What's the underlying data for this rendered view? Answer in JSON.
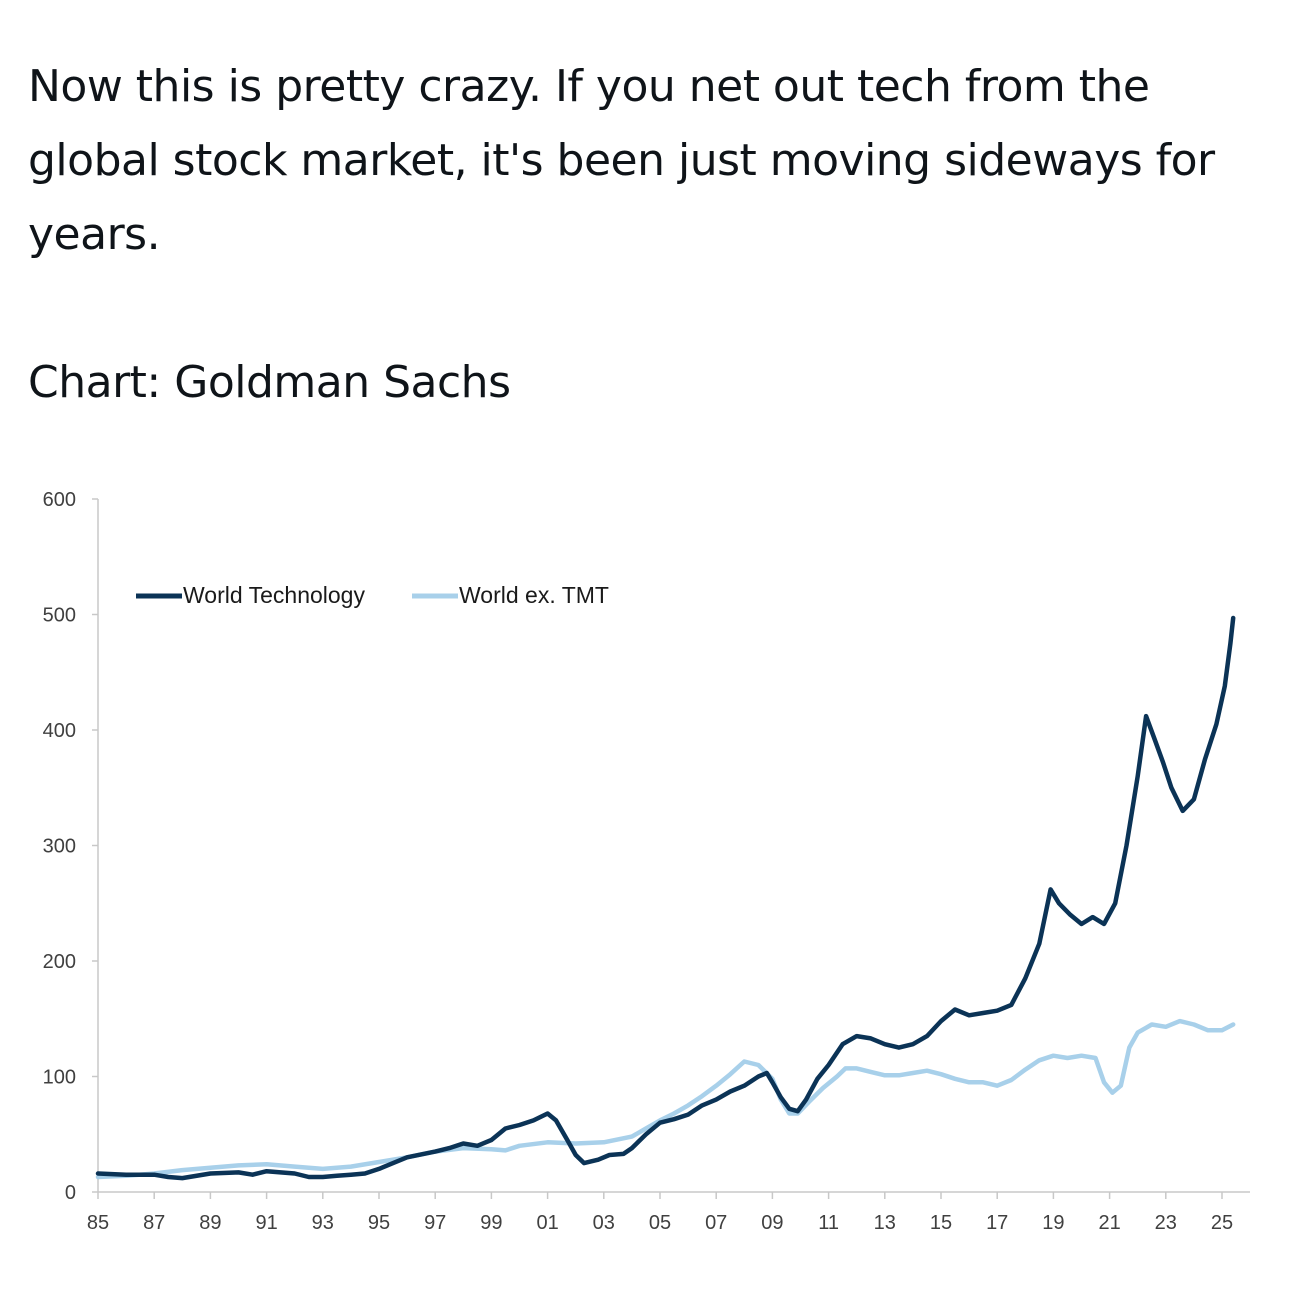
{
  "post": {
    "text": "Now this is pretty crazy. If you net out tech from the global stock market, it's been just moving sideways for years.",
    "source": "Chart: Goldman Sachs"
  },
  "colors": {
    "world_technology": "#0b3356",
    "world_ex_tmt": "#a8d0ea",
    "axis": "#c8c8c8",
    "tick_text": "#404040"
  },
  "chart_data": {
    "type": "line",
    "title": "",
    "xlabel": "",
    "ylabel": "",
    "xlim": [
      1985,
      2025.6
    ],
    "ylim": [
      0,
      600
    ],
    "x_tick_labels": [
      "85",
      "87",
      "89",
      "91",
      "93",
      "95",
      "97",
      "99",
      "01",
      "03",
      "05",
      "07",
      "09",
      "11",
      "13",
      "15",
      "17",
      "19",
      "21",
      "23",
      "25"
    ],
    "y_tick_labels": [
      "0",
      "100",
      "200",
      "300",
      "400",
      "500",
      "600"
    ],
    "grid": false,
    "legend": "top-left",
    "series": [
      {
        "name": "World Technology",
        "points": [
          [
            1985.0,
            16
          ],
          [
            1986.0,
            15
          ],
          [
            1987.0,
            15
          ],
          [
            1987.5,
            13
          ],
          [
            1988.0,
            12
          ],
          [
            1989.0,
            16
          ],
          [
            1990.0,
            17
          ],
          [
            1990.5,
            15
          ],
          [
            1991.0,
            18
          ],
          [
            1991.5,
            17
          ],
          [
            1992.0,
            16
          ],
          [
            1992.5,
            13
          ],
          [
            1993.0,
            13
          ],
          [
            1993.5,
            14
          ],
          [
            1994.0,
            15
          ],
          [
            1994.5,
            16
          ],
          [
            1995.0,
            20
          ],
          [
            1995.5,
            25
          ],
          [
            1996.0,
            30
          ],
          [
            1997.0,
            35
          ],
          [
            1997.5,
            38
          ],
          [
            1998.0,
            42
          ],
          [
            1998.5,
            40
          ],
          [
            1999.0,
            45
          ],
          [
            1999.5,
            55
          ],
          [
            2000.0,
            58
          ],
          [
            2000.5,
            62
          ],
          [
            2001.0,
            68
          ],
          [
            2001.3,
            62
          ],
          [
            2001.7,
            45
          ],
          [
            2002.0,
            32
          ],
          [
            2002.3,
            25
          ],
          [
            2002.8,
            28
          ],
          [
            2003.2,
            32
          ],
          [
            2003.7,
            33
          ],
          [
            2004.0,
            38
          ],
          [
            2004.5,
            50
          ],
          [
            2005.0,
            60
          ],
          [
            2005.5,
            63
          ],
          [
            2006.0,
            67
          ],
          [
            2006.5,
            75
          ],
          [
            2007.0,
            80
          ],
          [
            2007.5,
            87
          ],
          [
            2008.0,
            92
          ],
          [
            2008.5,
            100
          ],
          [
            2008.8,
            103
          ],
          [
            2009.0,
            95
          ],
          [
            2009.3,
            82
          ],
          [
            2009.6,
            72
          ],
          [
            2009.9,
            70
          ],
          [
            2010.2,
            80
          ],
          [
            2010.6,
            98
          ],
          [
            2011.0,
            110
          ],
          [
            2011.5,
            128
          ],
          [
            2012.0,
            135
          ],
          [
            2012.5,
            133
          ],
          [
            2013.0,
            128
          ],
          [
            2013.5,
            125
          ],
          [
            2014.0,
            128
          ],
          [
            2014.5,
            135
          ],
          [
            2015.0,
            148
          ],
          [
            2015.5,
            158
          ],
          [
            2016.0,
            153
          ],
          [
            2016.5,
            155
          ],
          [
            2017.0,
            157
          ],
          [
            2017.5,
            162
          ],
          [
            2018.0,
            185
          ],
          [
            2018.5,
            215
          ],
          [
            2018.9,
            262
          ],
          [
            2019.2,
            250
          ],
          [
            2019.6,
            240
          ],
          [
            2020.0,
            232
          ],
          [
            2020.4,
            238
          ],
          [
            2020.8,
            232
          ],
          [
            2021.2,
            250
          ],
          [
            2021.6,
            300
          ],
          [
            2022.0,
            360
          ],
          [
            2022.3,
            412
          ],
          [
            2022.6,
            392
          ],
          [
            2022.9,
            372
          ],
          [
            2023.2,
            350
          ],
          [
            2023.6,
            330
          ],
          [
            2024.0,
            340
          ],
          [
            2024.4,
            375
          ],
          [
            2024.8,
            405
          ],
          [
            2025.1,
            438
          ],
          [
            2025.3,
            475
          ],
          [
            2025.4,
            497
          ]
        ]
      },
      {
        "name": "World ex. TMT",
        "points": [
          [
            1985.0,
            13
          ],
          [
            1986.0,
            14
          ],
          [
            1987.0,
            16
          ],
          [
            1988.0,
            19
          ],
          [
            1989.0,
            21
          ],
          [
            1990.0,
            23
          ],
          [
            1991.0,
            24
          ],
          [
            1992.0,
            22
          ],
          [
            1993.0,
            20
          ],
          [
            1994.0,
            22
          ],
          [
            1995.0,
            26
          ],
          [
            1996.0,
            30
          ],
          [
            1997.0,
            35
          ],
          [
            1998.0,
            38
          ],
          [
            1999.0,
            37
          ],
          [
            1999.5,
            36
          ],
          [
            2000.0,
            40
          ],
          [
            2001.0,
            43
          ],
          [
            2002.0,
            42
          ],
          [
            2003.0,
            43
          ],
          [
            2004.0,
            48
          ],
          [
            2004.5,
            55
          ],
          [
            2005.0,
            62
          ],
          [
            2005.5,
            68
          ],
          [
            2006.0,
            75
          ],
          [
            2006.5,
            83
          ],
          [
            2007.0,
            92
          ],
          [
            2007.5,
            102
          ],
          [
            2008.0,
            113
          ],
          [
            2008.5,
            110
          ],
          [
            2009.0,
            98
          ],
          [
            2009.3,
            80
          ],
          [
            2009.6,
            68
          ],
          [
            2009.9,
            68
          ],
          [
            2010.3,
            78
          ],
          [
            2010.8,
            90
          ],
          [
            2011.3,
            100
          ],
          [
            2011.6,
            107
          ],
          [
            2012.0,
            107
          ],
          [
            2012.5,
            104
          ],
          [
            2013.0,
            101
          ],
          [
            2013.5,
            101
          ],
          [
            2014.0,
            103
          ],
          [
            2014.5,
            105
          ],
          [
            2015.0,
            102
          ],
          [
            2015.5,
            98
          ],
          [
            2016.0,
            95
          ],
          [
            2016.5,
            95
          ],
          [
            2017.0,
            92
          ],
          [
            2017.5,
            97
          ],
          [
            2018.0,
            106
          ],
          [
            2018.5,
            114
          ],
          [
            2019.0,
            118
          ],
          [
            2019.5,
            116
          ],
          [
            2020.0,
            118
          ],
          [
            2020.5,
            116
          ],
          [
            2020.8,
            95
          ],
          [
            2021.1,
            86
          ],
          [
            2021.4,
            92
          ],
          [
            2021.7,
            125
          ],
          [
            2022.0,
            138
          ],
          [
            2022.5,
            145
          ],
          [
            2023.0,
            143
          ],
          [
            2023.5,
            148
          ],
          [
            2024.0,
            145
          ],
          [
            2024.5,
            140
          ],
          [
            2025.0,
            140
          ],
          [
            2025.4,
            145
          ]
        ]
      }
    ]
  }
}
